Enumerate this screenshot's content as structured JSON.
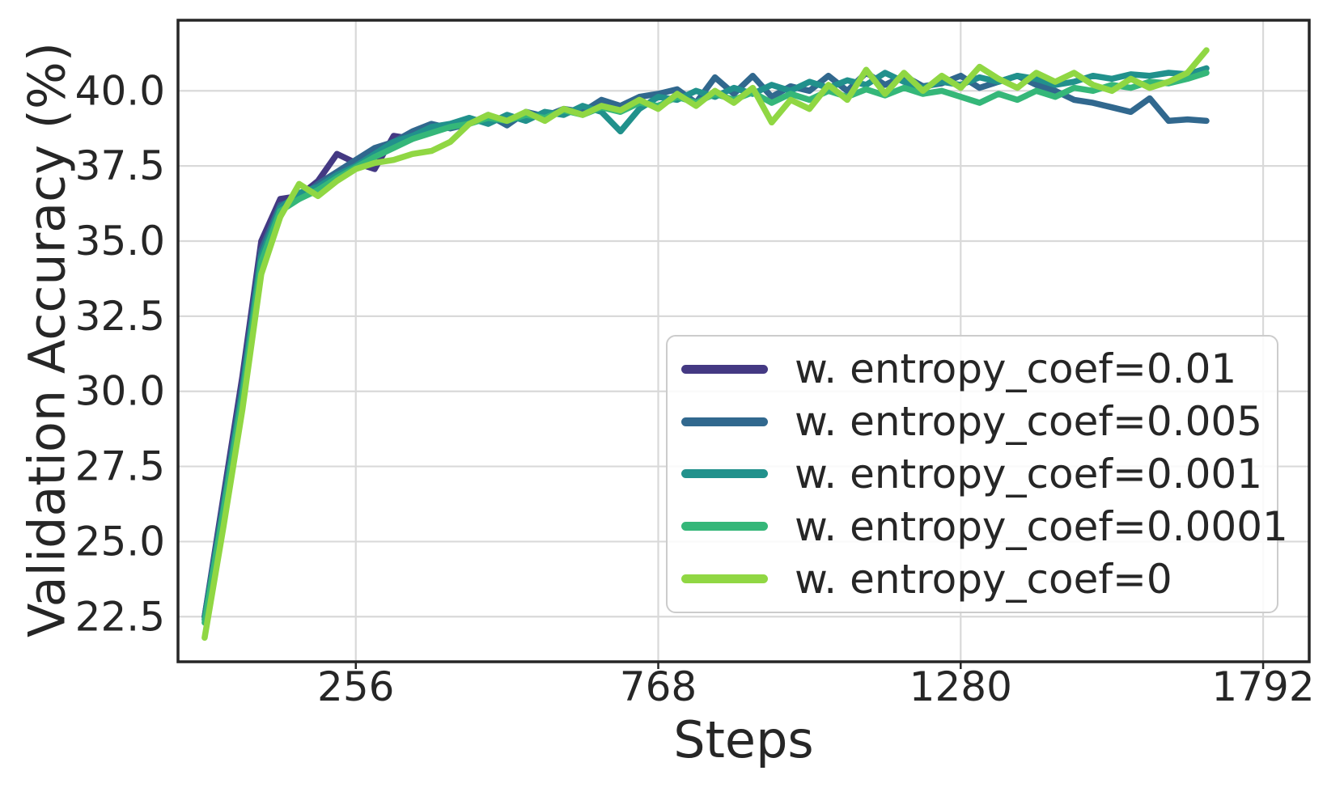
{
  "chart_data": {
    "type": "line",
    "title": "",
    "xlabel": "Steps",
    "ylabel": "Validation Accuracy (%)",
    "grid": true,
    "legend_position": "lower right",
    "xlim": [
      -45,
      1870
    ],
    "ylim": [
      21.0,
      42.35
    ],
    "x_ticks": [
      256,
      768,
      1280,
      1792
    ],
    "y_ticks": [
      22.5,
      25.0,
      27.5,
      30.0,
      32.5,
      35.0,
      37.5,
      40.0
    ],
    "y_tick_labels": [
      "22.5",
      "25.0",
      "27.5",
      "30.0",
      "32.5",
      "35.0",
      "37.5",
      "40.0"
    ],
    "colors": {
      "grid": "#d9d9d9",
      "spine": "#262626",
      "text": "#262626"
    },
    "series": [
      {
        "name": "w. entropy_coef=0.01",
        "color": "#443983",
        "x": [
          0,
          32,
          64,
          96,
          128,
          160,
          192,
          224,
          256,
          288,
          320,
          352
        ],
        "y": [
          22.5,
          26.5,
          30.5,
          35.0,
          36.4,
          36.5,
          37.0,
          37.9,
          37.6,
          37.4,
          38.5,
          38.4
        ]
      },
      {
        "name": "w. entropy_coef=0.005",
        "color": "#31688e",
        "x": [
          0,
          32,
          64,
          96,
          128,
          160,
          192,
          224,
          256,
          288,
          320,
          352,
          384,
          416,
          448,
          480,
          512,
          544,
          576,
          608,
          640,
          672,
          704,
          736,
          768,
          800,
          832,
          864,
          896,
          928,
          960,
          992,
          1024,
          1056,
          1088,
          1120,
          1152,
          1184,
          1216,
          1248,
          1280,
          1312,
          1344,
          1376,
          1408,
          1440,
          1472,
          1504,
          1536,
          1568,
          1600,
          1632,
          1664,
          1696
        ],
        "y": [
          22.5,
          26.3,
          30.2,
          34.7,
          36.2,
          36.4,
          36.9,
          37.3,
          37.7,
          38.1,
          38.3,
          38.65,
          38.9,
          38.75,
          38.9,
          39.2,
          38.85,
          39.3,
          39.15,
          39.4,
          39.3,
          39.7,
          39.5,
          39.8,
          39.9,
          40.05,
          39.6,
          40.45,
          39.9,
          40.5,
          39.8,
          40.15,
          40.0,
          40.5,
          40.0,
          40.6,
          40.2,
          40.5,
          40.15,
          40.25,
          40.5,
          40.1,
          40.3,
          40.5,
          40.2,
          40.0,
          39.7,
          39.6,
          39.45,
          39.3,
          39.75,
          39.0,
          39.05,
          39.0
        ]
      },
      {
        "name": "w. entropy_coef=0.001",
        "color": "#21918c",
        "x": [
          0,
          32,
          64,
          96,
          128,
          160,
          192,
          224,
          256,
          288,
          320,
          352,
          384,
          416,
          448,
          480,
          512,
          544,
          576,
          608,
          640,
          672,
          704,
          736,
          768,
          800,
          832,
          864,
          896,
          928,
          960,
          992,
          1024,
          1056,
          1088,
          1120,
          1152,
          1184,
          1216,
          1248,
          1280,
          1312,
          1344,
          1376,
          1408,
          1440,
          1472,
          1504,
          1536,
          1568,
          1600,
          1632,
          1664,
          1696
        ],
        "y": [
          22.4,
          26.1,
          30.0,
          34.5,
          36.1,
          36.6,
          36.8,
          37.2,
          37.5,
          37.9,
          38.3,
          38.5,
          38.8,
          38.9,
          39.1,
          38.9,
          39.2,
          39.0,
          39.3,
          39.2,
          39.5,
          39.3,
          38.65,
          39.4,
          39.8,
          39.7,
          40.0,
          39.8,
          40.1,
          39.9,
          40.2,
          40.0,
          40.3,
          40.1,
          40.35,
          40.2,
          40.6,
          40.3,
          40.1,
          40.3,
          40.2,
          40.45,
          40.3,
          40.5,
          40.4,
          40.2,
          40.3,
          40.5,
          40.4,
          40.55,
          40.5,
          40.6,
          40.55,
          40.75
        ]
      },
      {
        "name": "w. entropy_coef=0.0001",
        "color": "#35b779",
        "x": [
          0,
          32,
          64,
          96,
          128,
          160,
          192,
          224,
          256,
          288,
          320,
          352,
          384,
          416,
          448,
          480,
          512,
          544,
          576,
          608,
          640,
          672,
          704,
          736,
          768,
          800,
          832,
          864,
          896,
          928,
          960,
          992,
          1024,
          1056,
          1088,
          1120,
          1152,
          1184,
          1216,
          1248,
          1280,
          1312,
          1344,
          1376,
          1408,
          1440,
          1472,
          1504,
          1536,
          1568,
          1600,
          1632,
          1664,
          1696
        ],
        "y": [
          22.3,
          26.0,
          29.8,
          34.3,
          36.0,
          36.4,
          36.7,
          37.1,
          37.45,
          37.8,
          38.1,
          38.4,
          38.6,
          38.8,
          38.9,
          39.1,
          39.0,
          39.2,
          39.1,
          39.35,
          39.2,
          39.45,
          39.3,
          39.6,
          39.5,
          39.8,
          39.6,
          39.9,
          39.7,
          39.95,
          39.6,
          39.9,
          39.7,
          40.0,
          39.8,
          40.05,
          39.85,
          40.1,
          39.9,
          40.0,
          39.8,
          39.6,
          39.9,
          39.7,
          40.0,
          39.8,
          40.1,
          40.0,
          40.2,
          40.1,
          40.3,
          40.25,
          40.4,
          40.6
        ]
      },
      {
        "name": "w. entropy_coef=0",
        "color": "#90d743",
        "x": [
          0,
          32,
          64,
          96,
          128,
          160,
          192,
          224,
          256,
          288,
          320,
          352,
          384,
          416,
          448,
          480,
          512,
          544,
          576,
          608,
          640,
          672,
          704,
          736,
          768,
          800,
          832,
          864,
          896,
          928,
          960,
          992,
          1024,
          1056,
          1088,
          1120,
          1152,
          1184,
          1216,
          1248,
          1280,
          1312,
          1344,
          1376,
          1408,
          1440,
          1472,
          1504,
          1536,
          1568,
          1600,
          1632,
          1664,
          1696
        ],
        "y": [
          21.8,
          25.5,
          29.4,
          33.9,
          35.8,
          36.9,
          36.5,
          37.0,
          37.4,
          37.6,
          37.7,
          37.9,
          38.0,
          38.3,
          38.9,
          39.2,
          39.0,
          39.3,
          39.0,
          39.4,
          39.2,
          39.5,
          39.35,
          39.7,
          39.4,
          39.9,
          39.5,
          40.0,
          39.6,
          40.1,
          38.95,
          39.7,
          39.4,
          40.2,
          39.7,
          40.7,
          39.9,
          40.6,
          40.0,
          40.5,
          40.1,
          40.8,
          40.4,
          40.1,
          40.6,
          40.3,
          40.6,
          40.2,
          40.0,
          40.4,
          40.1,
          40.3,
          40.6,
          41.35
        ]
      }
    ]
  }
}
